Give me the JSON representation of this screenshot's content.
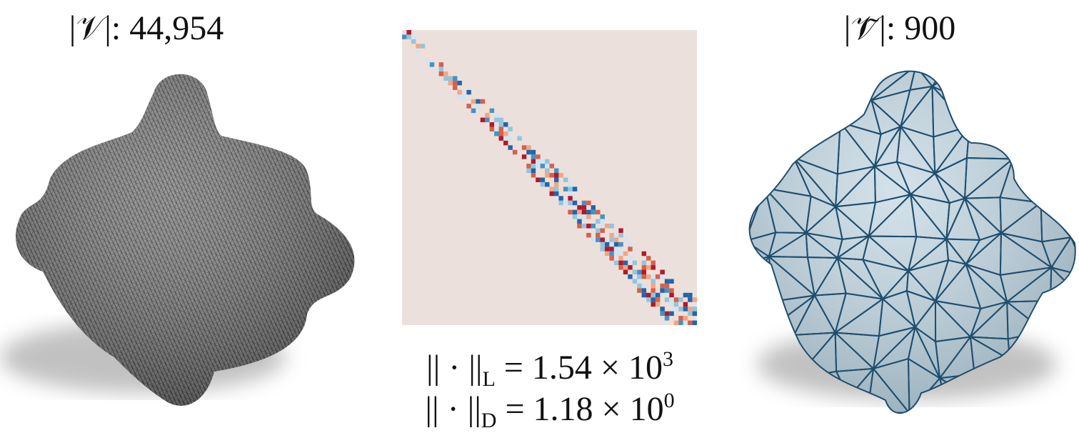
{
  "left": {
    "label": "|𝒱|: 44,954"
  },
  "right": {
    "label": "|𝒱̃|: 900"
  },
  "matrix": {
    "norm_l": {
      "bars": "|| · ||",
      "sub": "L",
      "eq": " = 1.54 × 10",
      "sup": "3"
    },
    "norm_d": {
      "bars": "|| · ||",
      "sub": "D",
      "eq": " = 1.18 × 10",
      "sup": "0"
    }
  }
}
